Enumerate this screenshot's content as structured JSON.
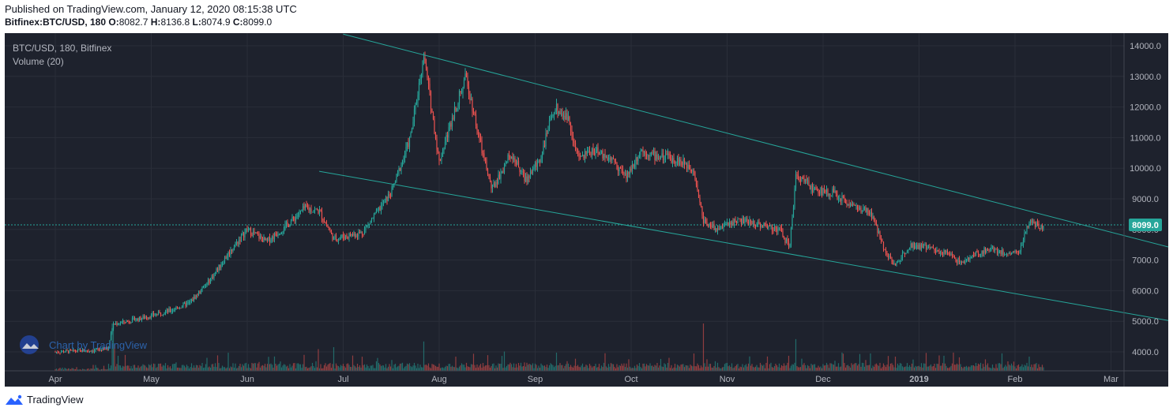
{
  "header": {
    "published": "Published on TradingView.com, January 12, 2020 08:15:38 UTC",
    "symbol": "Bitfinex:BTC/USD, 180",
    "o_label": "O:",
    "o_value": "8082.7",
    "h_label": "H:",
    "h_value": "8136.8",
    "l_label": "L:",
    "l_value": "8074.9",
    "c_label": "C:",
    "c_value": "8099.0"
  },
  "legend": {
    "symbol": "BTC/USD, 180, Bitfinex",
    "volume": "Volume (20)"
  },
  "watermark": "Chart by TradingView",
  "footer": {
    "brand": "TradingView"
  },
  "colors": {
    "background": "#1e222d",
    "grid": "#2a2e39",
    "up": "#26a69a",
    "down": "#ef5350",
    "trendline": "#26a69a",
    "last_price_badge": "#26a69a",
    "axis_text": "#b2b5be"
  },
  "chart_data": {
    "type": "candlestick",
    "title": "BTC/USD, 180, Bitfinex",
    "timeframe": "180",
    "x_range": [
      "2019-03-25",
      "2019-03-06"
    ],
    "x_ticks": [
      "Apr",
      "May",
      "Jun",
      "Jul",
      "Aug",
      "Sep",
      "Oct",
      "Nov",
      "Dec",
      "2019",
      "Feb",
      "Mar"
    ],
    "y_ticks": [
      "14000.0",
      "13000.0",
      "12000.0",
      "11000.0",
      "10000.0",
      "9000.0",
      "8000.0",
      "7000.0",
      "6000.0",
      "5000.0",
      "4000.0"
    ],
    "ylim": [
      3450,
      14300
    ],
    "last_price": "8099.0",
    "price_path": [
      {
        "m": 0.0,
        "p": 4000
      },
      {
        "m": 0.4,
        "p": 4050
      },
      {
        "m": 0.55,
        "p": 4100
      },
      {
        "m": 0.6,
        "p": 4900
      },
      {
        "m": 0.9,
        "p": 5100
      },
      {
        "m": 1.2,
        "p": 5350
      },
      {
        "m": 1.4,
        "p": 5600
      },
      {
        "m": 1.6,
        "p": 6300
      },
      {
        "m": 1.8,
        "p": 7200
      },
      {
        "m": 2.0,
        "p": 8000
      },
      {
        "m": 2.2,
        "p": 7600
      },
      {
        "m": 2.4,
        "p": 8100
      },
      {
        "m": 2.6,
        "p": 8700
      },
      {
        "m": 2.75,
        "p": 8600
      },
      {
        "m": 2.9,
        "p": 7700
      },
      {
        "m": 3.2,
        "p": 7900
      },
      {
        "m": 3.5,
        "p": 9200
      },
      {
        "m": 3.7,
        "p": 11000
      },
      {
        "m": 3.84,
        "p": 13700
      },
      {
        "m": 4.0,
        "p": 10200
      },
      {
        "m": 4.15,
        "p": 11800
      },
      {
        "m": 4.28,
        "p": 13000
      },
      {
        "m": 4.45,
        "p": 10500
      },
      {
        "m": 4.55,
        "p": 9300
      },
      {
        "m": 4.75,
        "p": 10500
      },
      {
        "m": 4.9,
        "p": 9600
      },
      {
        "m": 5.05,
        "p": 10300
      },
      {
        "m": 5.2,
        "p": 12000
      },
      {
        "m": 5.35,
        "p": 11600
      },
      {
        "m": 5.45,
        "p": 10300
      },
      {
        "m": 5.6,
        "p": 10600
      },
      {
        "m": 5.8,
        "p": 10300
      },
      {
        "m": 5.95,
        "p": 9700
      },
      {
        "m": 6.1,
        "p": 10600
      },
      {
        "m": 6.25,
        "p": 10400
      },
      {
        "m": 6.45,
        "p": 10300
      },
      {
        "m": 6.65,
        "p": 10000
      },
      {
        "m": 6.75,
        "p": 8300
      },
      {
        "m": 6.9,
        "p": 8000
      },
      {
        "m": 7.1,
        "p": 8300
      },
      {
        "m": 7.3,
        "p": 8200
      },
      {
        "m": 7.55,
        "p": 8000
      },
      {
        "m": 7.65,
        "p": 7400
      },
      {
        "m": 7.72,
        "p": 9800
      },
      {
        "m": 7.9,
        "p": 9300
      },
      {
        "m": 8.1,
        "p": 9200
      },
      {
        "m": 8.3,
        "p": 8800
      },
      {
        "m": 8.5,
        "p": 8500
      },
      {
        "m": 8.65,
        "p": 7300
      },
      {
        "m": 8.75,
        "p": 6800
      },
      {
        "m": 8.9,
        "p": 7500
      },
      {
        "m": 9.1,
        "p": 7400
      },
      {
        "m": 9.3,
        "p": 7200
      },
      {
        "m": 9.45,
        "p": 6900
      },
      {
        "m": 9.6,
        "p": 7200
      },
      {
        "m": 9.75,
        "p": 7400
      },
      {
        "m": 9.9,
        "p": 7200
      },
      {
        "m": 10.05,
        "p": 7300
      },
      {
        "m": 10.15,
        "p": 8300
      },
      {
        "m": 10.25,
        "p": 8050
      },
      {
        "m": 10.3,
        "p": 8099
      }
    ],
    "trendlines": [
      {
        "name": "upper",
        "points": [
          {
            "m": 3.0,
            "p": 14380
          },
          {
            "m": 12.15,
            "p": 6980
          }
        ]
      },
      {
        "name": "lower",
        "points": [
          {
            "m": 2.75,
            "p": 9900
          },
          {
            "m": 12.15,
            "p": 4720
          }
        ]
      }
    ],
    "volume_spikes": [
      {
        "m": 0.6,
        "v": 1.0
      },
      {
        "m": 0.62,
        "v": 0.55
      },
      {
        "m": 2.9,
        "v": 0.5
      },
      {
        "m": 3.84,
        "v": 0.62
      },
      {
        "m": 6.75,
        "v": 1.0
      },
      {
        "m": 7.72,
        "v": 0.67
      },
      {
        "m": 8.75,
        "v": 0.3
      },
      {
        "m": 10.15,
        "v": 0.3
      }
    ]
  }
}
